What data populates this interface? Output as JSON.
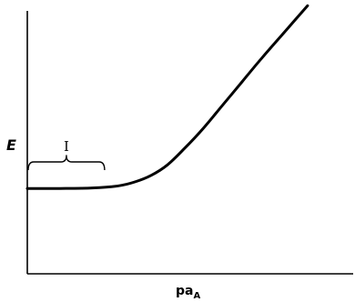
{
  "chart_data": {
    "type": "line",
    "title": "",
    "xlabel": "pa",
    "xlabel_subscript": "A",
    "ylabel": "E",
    "grid": false,
    "legend": "none",
    "xlim": [
      0,
      1
    ],
    "ylim": [
      0,
      1
    ],
    "series": [
      {
        "color": "#000000",
        "x": [
          0.0,
          0.1,
          0.2,
          0.28,
          0.33,
          0.38,
          0.43,
          0.48,
          0.54,
          0.6,
          0.66,
          0.72,
          0.79,
          0.86
        ],
        "y": [
          0.32,
          0.32,
          0.322,
          0.33,
          0.345,
          0.37,
          0.41,
          0.47,
          0.55,
          0.64,
          0.73,
          0.82,
          0.92,
          1.02
        ]
      }
    ],
    "annotations": [
      {
        "label": "I",
        "brace_x": [
          0.0,
          0.24
        ]
      }
    ]
  }
}
